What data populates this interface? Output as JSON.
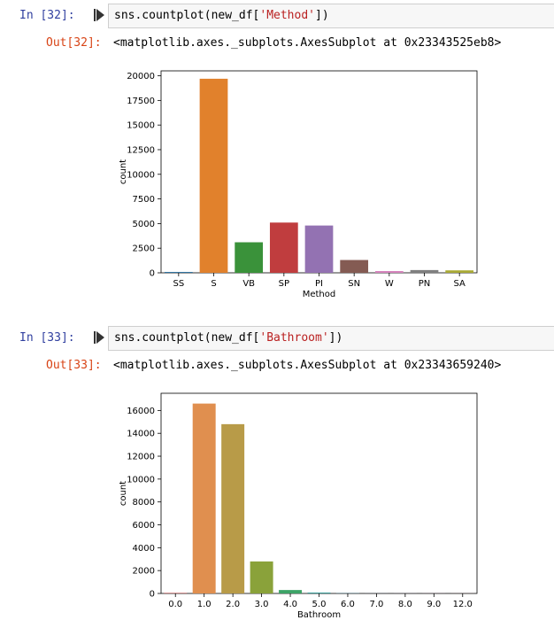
{
  "cells": [
    {
      "in_prompt": "In [32]:",
      "out_prompt": "Out[32]:",
      "code": {
        "prefix": "sns.countplot(new_df[",
        "string": "'Method'",
        "suffix": "])"
      },
      "output_text": "<matplotlib.axes._subplots.AxesSubplot at 0x23343525eb8>"
    },
    {
      "in_prompt": "In [33]:",
      "out_prompt": "Out[33]:",
      "code": {
        "prefix": "sns.countplot(new_df[",
        "string": "'Bathroom'",
        "suffix": "])"
      },
      "output_text": "<matplotlib.axes._subplots.AxesSubplot at 0x23343659240>"
    }
  ],
  "chart_data": [
    {
      "type": "bar",
      "xlabel": "Method",
      "ylabel": "count",
      "categories": [
        "SS",
        "S",
        "VB",
        "SP",
        "PI",
        "SN",
        "W",
        "PN",
        "SA"
      ],
      "values": [
        90,
        19700,
        3100,
        5100,
        4800,
        1300,
        180,
        280,
        250
      ],
      "colors": [
        "#3274a1",
        "#e1812c",
        "#3a923a",
        "#c03d3e",
        "#9372b2",
        "#845b53",
        "#d684bd",
        "#7f7f7f",
        "#a9aa35"
      ],
      "ylim": [
        0,
        20500
      ],
      "yticks": [
        0,
        2500,
        5000,
        7500,
        10000,
        12500,
        15000,
        17500,
        20000
      ],
      "grid": false
    },
    {
      "type": "bar",
      "xlabel": "Bathroom",
      "ylabel": "count",
      "categories": [
        "0.0",
        "1.0",
        "2.0",
        "3.0",
        "4.0",
        "5.0",
        "6.0",
        "7.0",
        "8.0",
        "9.0",
        "12.0"
      ],
      "values": [
        50,
        16600,
        14800,
        2800,
        300,
        80,
        15,
        5,
        5,
        5,
        5
      ],
      "colors": [
        "#c05a5a",
        "#e08f4f",
        "#b89b48",
        "#8aa23a",
        "#3da467",
        "#3d9e9a",
        "#3a9bc0",
        "#6e8fd0",
        "#a77fd0",
        "#d37bb8",
        "#d9778e"
      ],
      "ylim": [
        0,
        17500
      ],
      "yticks": [
        0,
        2000,
        4000,
        6000,
        8000,
        10000,
        12000,
        14000,
        16000
      ],
      "grid": false
    }
  ]
}
